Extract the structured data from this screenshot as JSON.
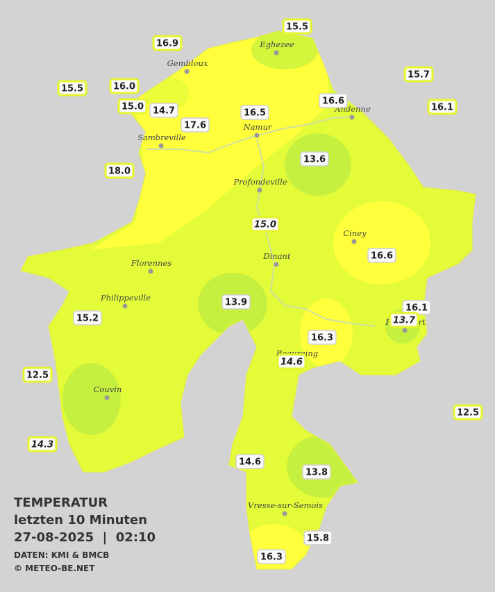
{
  "title": "TEMPERATUR",
  "subtitle": "letzten 10 Minuten",
  "timestamp": "27-08-2025  |  02:10",
  "source": "DATEN: KMI & BMCB",
  "credit": "© METEO-BE.NET",
  "places": [
    "Eghezee",
    "Gembloux",
    "Andenne",
    "Namur",
    "Sambreville",
    "Profondeville",
    "Ciney",
    "Dinant",
    "Florennes",
    "Philippeville",
    "Rochefort",
    "Beauraing",
    "Couvin",
    "Vresse-sur-Semois"
  ],
  "stations": [
    "15.5",
    "16.9",
    "15.7",
    "15.5",
    "16.0",
    "16.6",
    "16.1",
    "15.0",
    "14.7",
    "16.5",
    "17.6",
    "18.0",
    "13.6",
    "15.0",
    "16.6",
    "13.9",
    "16.1",
    "15.2",
    "13.7",
    "16.3",
    "14.6",
    "12.5",
    "12.5",
    "14.3",
    "14.6",
    "13.8",
    "15.8",
    "16.3"
  ]
}
